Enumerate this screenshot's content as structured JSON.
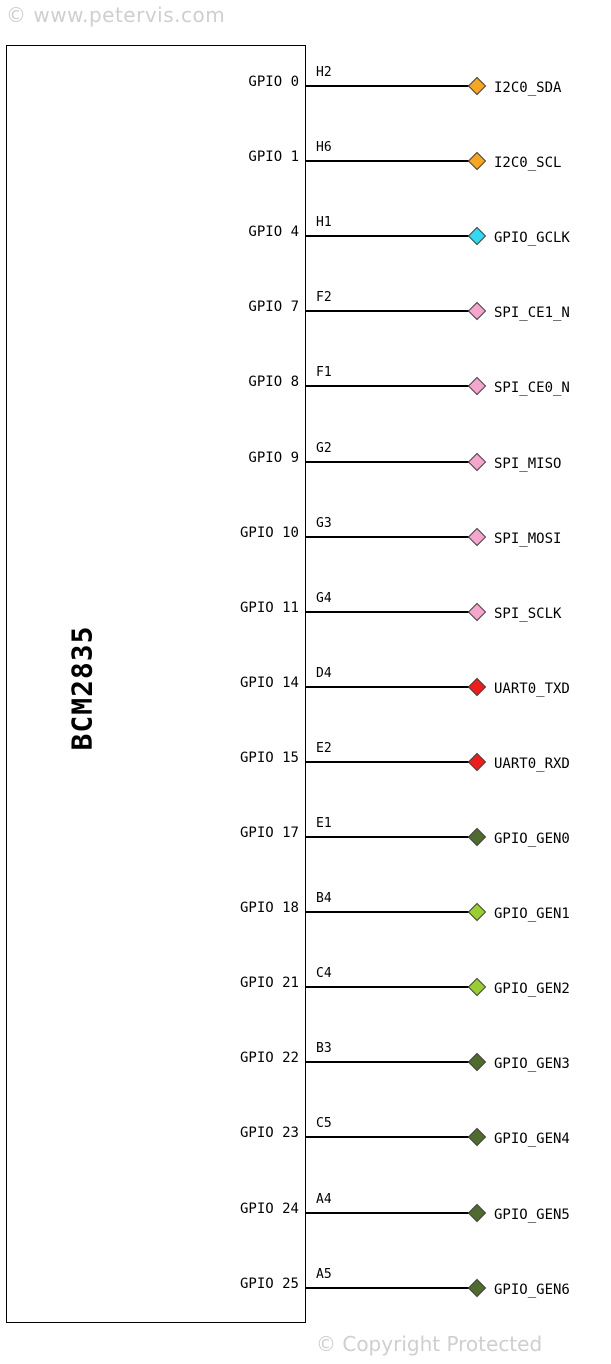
{
  "watermark_top": "© www.petervis.com",
  "watermark_bottom": "© Copyright Protected",
  "chip_name": "BCM2835",
  "pins": [
    {
      "gpio": "GPIO 0",
      "ball": "H2",
      "function": "I2C0_SDA",
      "color": "#f5a623"
    },
    {
      "gpio": "GPIO 1",
      "ball": "H6",
      "function": "I2C0_SCL",
      "color": "#f5a623"
    },
    {
      "gpio": "GPIO 4",
      "ball": "H1",
      "function": "GPIO_GCLK",
      "color": "#33d9f0"
    },
    {
      "gpio": "GPIO 7",
      "ball": "F2",
      "function": "SPI_CE1_N",
      "color": "#f4a6cc"
    },
    {
      "gpio": "GPIO 8",
      "ball": "F1",
      "function": "SPI_CE0_N",
      "color": "#f4a6cc"
    },
    {
      "gpio": "GPIO 9",
      "ball": "G2",
      "function": "SPI_MISO",
      "color": "#f4a6cc"
    },
    {
      "gpio": "GPIO 10",
      "ball": "G3",
      "function": "SPI_MOSI",
      "color": "#f4a6cc"
    },
    {
      "gpio": "GPIO 11",
      "ball": "G4",
      "function": "SPI_SCLK",
      "color": "#f4a6cc"
    },
    {
      "gpio": "GPIO 14",
      "ball": "D4",
      "function": "UART0_TXD",
      "color": "#ee1c1c"
    },
    {
      "gpio": "GPIO 15",
      "ball": "E2",
      "function": "UART0_RXD",
      "color": "#ee1c1c"
    },
    {
      "gpio": "GPIO 17",
      "ball": "E1",
      "function": "GPIO_GEN0",
      "color": "#4f6b2e"
    },
    {
      "gpio": "GPIO 18",
      "ball": "B4",
      "function": "GPIO_GEN1",
      "color": "#9acd32"
    },
    {
      "gpio": "GPIO 21",
      "ball": "C4",
      "function": "GPIO_GEN2",
      "color": "#9acd32"
    },
    {
      "gpio": "GPIO 22",
      "ball": "B3",
      "function": "GPIO_GEN3",
      "color": "#4f6b2e"
    },
    {
      "gpio": "GPIO 23",
      "ball": "C5",
      "function": "GPIO_GEN4",
      "color": "#4f6b2e"
    },
    {
      "gpio": "GPIO 24",
      "ball": "A4",
      "function": "GPIO_GEN5",
      "color": "#4f6b2e"
    },
    {
      "gpio": "GPIO 25",
      "ball": "A5",
      "function": "GPIO_GEN6",
      "color": "#4f6b2e"
    }
  ]
}
